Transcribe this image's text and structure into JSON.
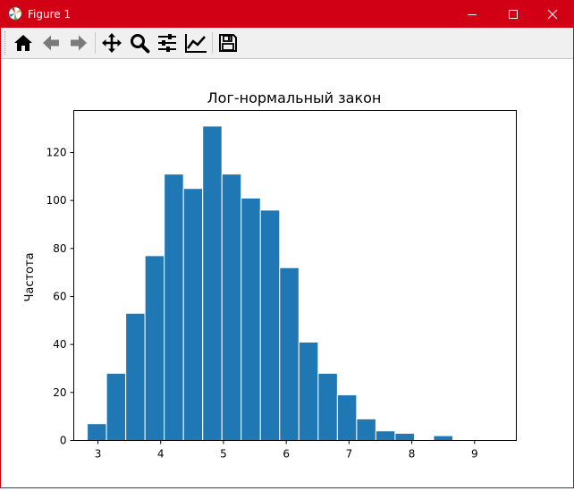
{
  "window": {
    "title": "Figure 1",
    "title_bar_color": "#d10014"
  },
  "toolbar": {
    "buttons": [
      {
        "icon": "home-icon",
        "label": "Home"
      },
      {
        "icon": "back-arrow-icon",
        "label": "Back"
      },
      {
        "icon": "forward-arrow-icon",
        "label": "Forward"
      },
      {
        "icon": "pan-icon",
        "label": "Pan"
      },
      {
        "icon": "zoom-icon",
        "label": "Zoom"
      },
      {
        "icon": "subplots-icon",
        "label": "Configure subplots"
      },
      {
        "icon": "edit-axis-icon",
        "label": "Edit axis"
      },
      {
        "icon": "save-icon",
        "label": "Save"
      }
    ]
  },
  "chart_data": {
    "type": "bar",
    "title": "Лог-нормальный закон",
    "xlabel": "",
    "ylabel": "Частота",
    "bar_color": "#1f77b4",
    "edge_color": "#ffffff",
    "xlim": [
      2.615,
      9.665
    ],
    "ylim": [
      0,
      137.5
    ],
    "xticks": [
      3,
      4,
      5,
      6,
      7,
      8,
      9
    ],
    "yticks": [
      0,
      20,
      40,
      60,
      80,
      100,
      120
    ],
    "bin_start": 2.83,
    "bin_width": 0.3065,
    "values": [
      7,
      28,
      53,
      77,
      111,
      105,
      131,
      111,
      101,
      96,
      72,
      41,
      28,
      19,
      9,
      4,
      3,
      0,
      2,
      0,
      0
    ],
    "grid": false
  }
}
